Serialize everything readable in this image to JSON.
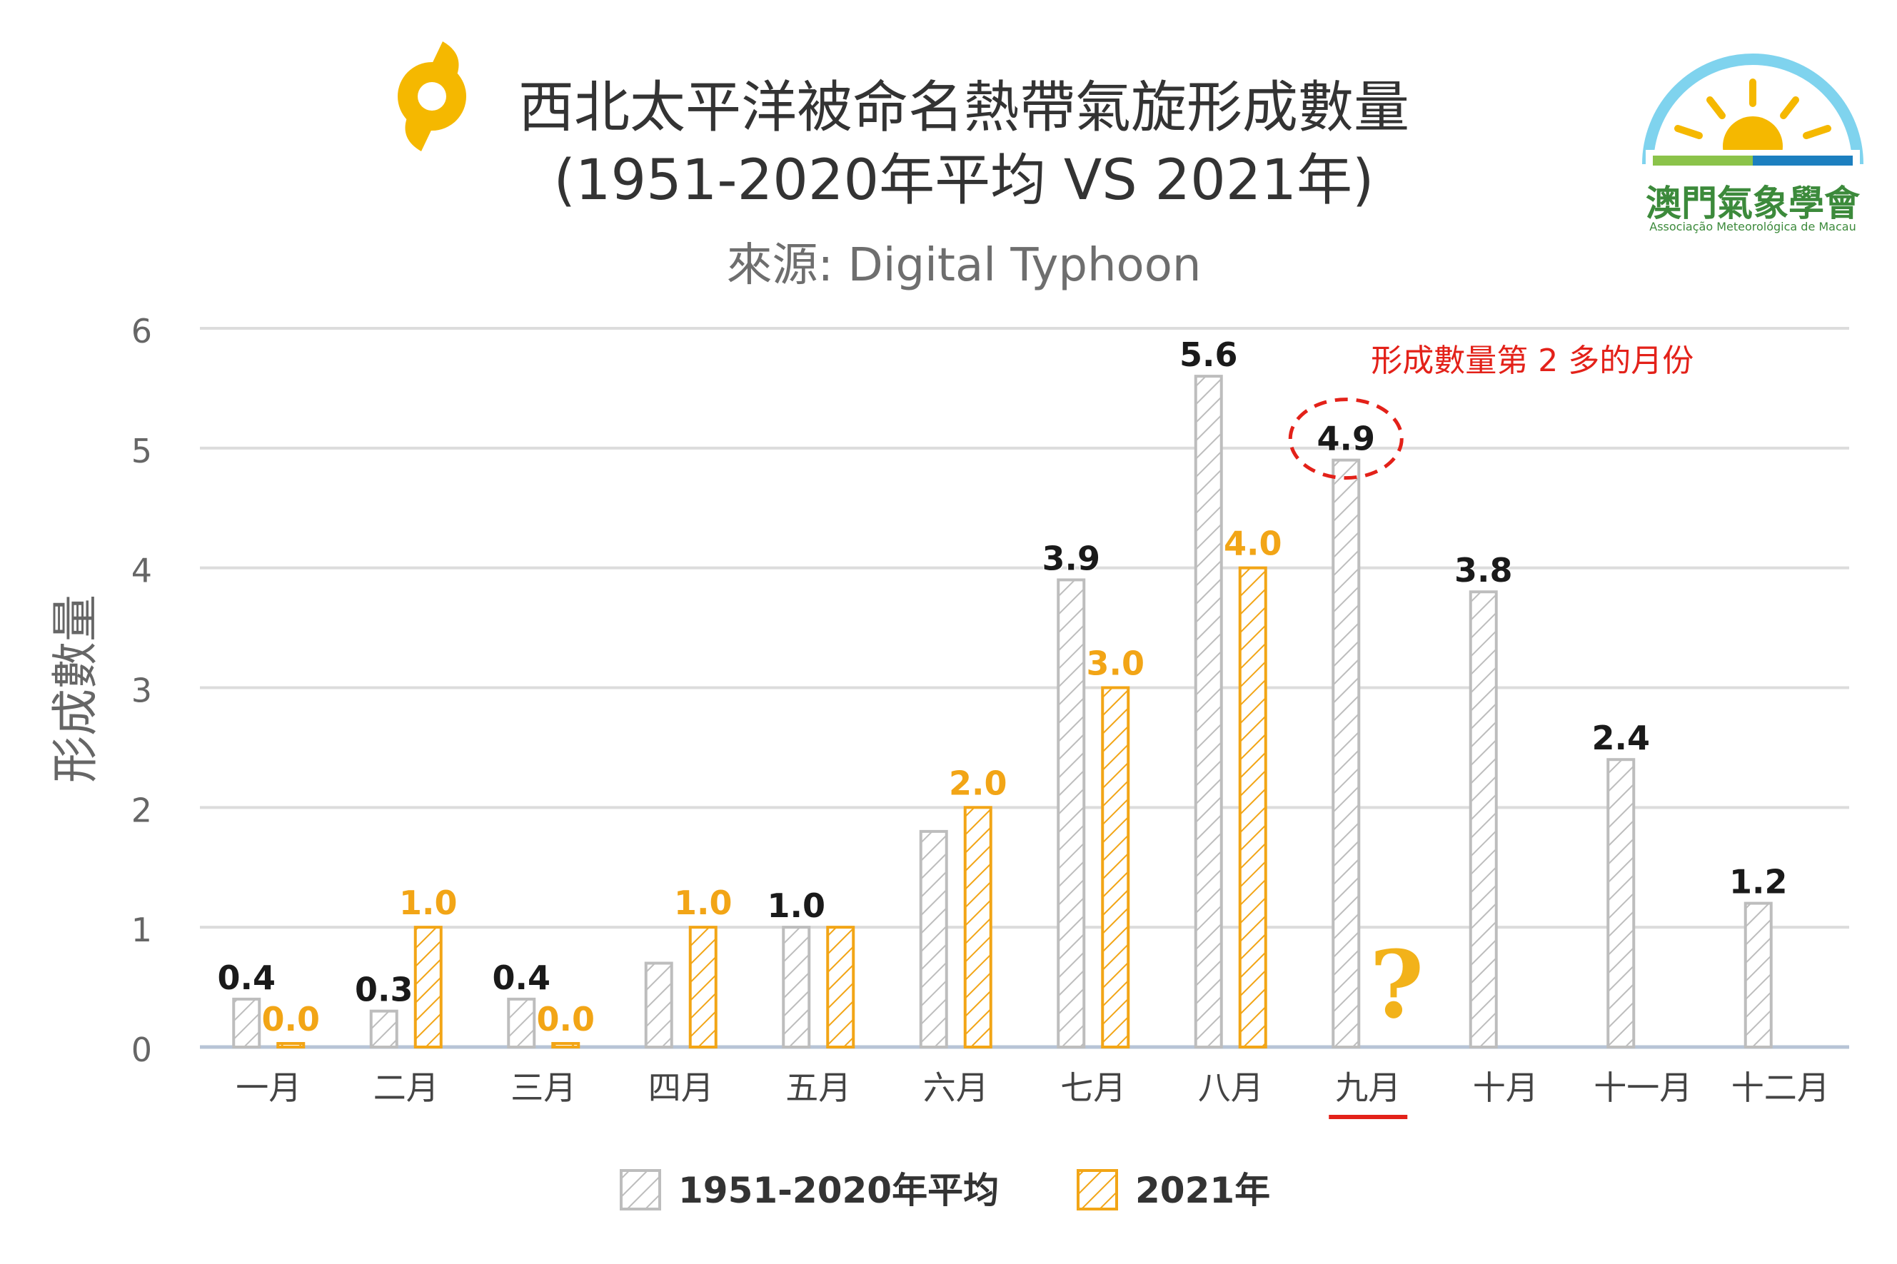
{
  "title_line1": "西北太平洋被命名熱帶氣旋形成數量",
  "title_line2": "(1951-2020年平均 VS 2021年)",
  "source": "來源: Digital Typhoon",
  "logo": {
    "name": "澳門氣象學會",
    "subtitle": "Associação Meteorológica de Macau"
  },
  "annotation": "形成數量第 2 多的月份",
  "question_mark": "?",
  "colors": {
    "series1": "#bdbdbd",
    "series2": "#f2a516",
    "annotation": "#e32119",
    "icon": "#f5b800"
  },
  "chart_data": {
    "type": "bar",
    "ylabel": "形成數量",
    "ylim": [
      0,
      6
    ],
    "yticks": [
      "0",
      "1",
      "2",
      "3",
      "4",
      "5",
      "6"
    ],
    "grid": true,
    "legend_position": "bottom",
    "highlighted_category": "九月",
    "categories": [
      "一月",
      "二月",
      "三月",
      "四月",
      "五月",
      "六月",
      "七月",
      "八月",
      "九月",
      "十月",
      "十一月",
      "十二月"
    ],
    "series": [
      {
        "name": "1951-2020年平均",
        "values": [
          0.4,
          0.3,
          0.4,
          0.7,
          1.0,
          1.8,
          3.9,
          5.6,
          4.9,
          3.8,
          2.4,
          1.2
        ],
        "labels": [
          "0.4",
          "0.3",
          "0.4",
          "",
          "1.0",
          "",
          "3.9",
          "5.6",
          "4.9",
          "3.8",
          "2.4",
          "1.2"
        ]
      },
      {
        "name": "2021年",
        "values": [
          0.0,
          1.0,
          0.0,
          1.0,
          1.0,
          2.0,
          3.0,
          4.0,
          null,
          null,
          null,
          null
        ],
        "labels": [
          "0.0",
          "1.0",
          "0.0",
          "1.0",
          "",
          "2.0",
          "3.0",
          "4.0",
          "",
          "",
          "",
          ""
        ]
      }
    ]
  }
}
